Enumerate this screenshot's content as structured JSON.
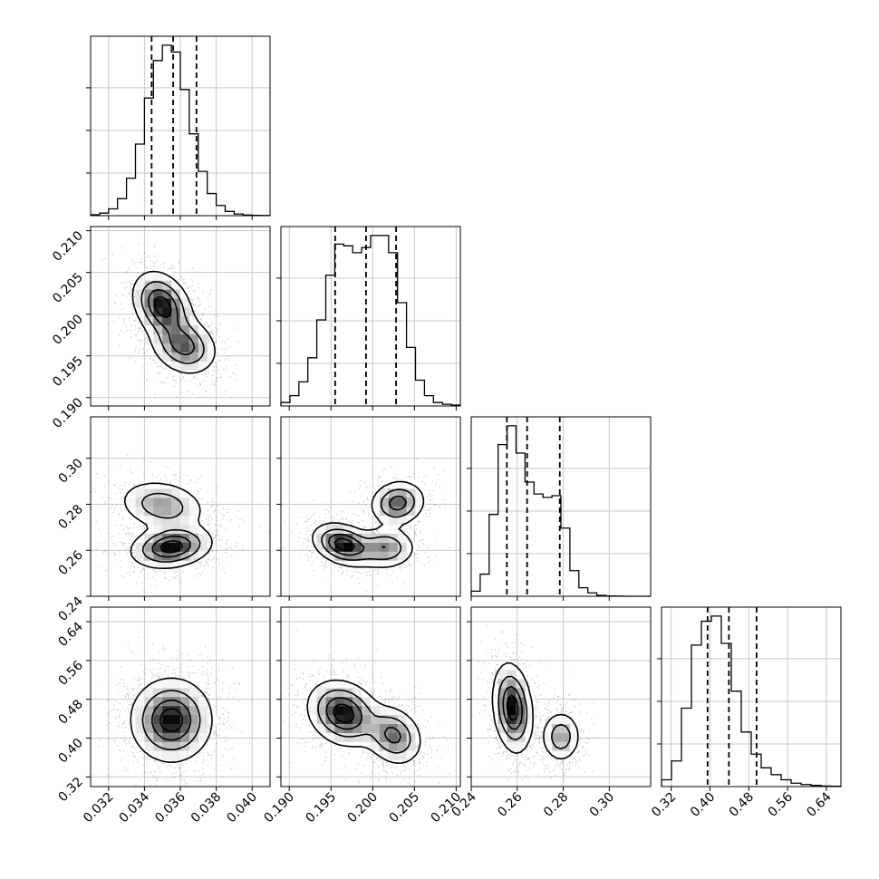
{
  "chart_data": {
    "type": "corner",
    "colors": {
      "line": "#000000",
      "grid": "#c8c8c8",
      "density": "#000000",
      "background": "#ffffff"
    },
    "grid": true,
    "quantiles": [
      0.16,
      0.5,
      0.84
    ],
    "params": [
      {
        "range": [
          0.031,
          0.041
        ],
        "ticks": [
          "0.032",
          "0.034",
          "0.036",
          "0.038",
          "0.040"
        ],
        "quantile_lines": [
          0.0344,
          0.0356,
          0.0369
        ],
        "hist": [
          0.005,
          0.015,
          0.04,
          0.1,
          0.22,
          0.42,
          0.69,
          0.91,
          1.0,
          0.96,
          0.74,
          0.48,
          0.26,
          0.13,
          0.06,
          0.025,
          0.01,
          0.004,
          0.002,
          0.001
        ]
      },
      {
        "range": [
          0.189,
          0.2105
        ],
        "ticks": [
          "0.190",
          "0.195",
          "0.200",
          "0.205",
          "0.210"
        ],
        "quantile_lines": [
          0.1955,
          0.1992,
          0.2028
        ],
        "hist": [
          0.02,
          0.06,
          0.14,
          0.28,
          0.5,
          0.76,
          0.94,
          0.93,
          0.89,
          0.92,
          0.99,
          0.99,
          0.89,
          0.6,
          0.34,
          0.15,
          0.06,
          0.02,
          0.01,
          0.005
        ]
      },
      {
        "range": [
          0.24,
          0.318
        ],
        "ticks": [
          "0.24",
          "0.26",
          "0.28",
          "0.30"
        ],
        "quantile_lines": [
          0.2555,
          0.2643,
          0.2785
        ],
        "hist": [
          0.03,
          0.13,
          0.48,
          0.89,
          1.0,
          0.84,
          0.67,
          0.6,
          0.58,
          0.59,
          0.4,
          0.15,
          0.05,
          0.02,
          0.005,
          0.002,
          0.001,
          0.0,
          0.0,
          0.0
        ]
      },
      {
        "range": [
          0.3,
          0.67
        ],
        "ticks": [
          "0.32",
          "0.40",
          "0.48",
          "0.56",
          "0.64"
        ],
        "quantile_lines": [
          0.395,
          0.439,
          0.496
        ],
        "hist": [
          0.04,
          0.15,
          0.46,
          0.83,
          0.97,
          1.0,
          0.84,
          0.56,
          0.32,
          0.19,
          0.11,
          0.07,
          0.04,
          0.02,
          0.012,
          0.007,
          0.003,
          0.002
        ]
      }
    ],
    "pairs": [
      {
        "x": 0,
        "y": 1,
        "blobs": [
          {
            "mx": 0.035,
            "my": 0.201,
            "sx": 0.0008,
            "sy": 0.002,
            "r": -0.3,
            "w": 1.0
          },
          {
            "mx": 0.0362,
            "my": 0.1962,
            "sx": 0.0009,
            "sy": 0.0017,
            "r": -0.2,
            "w": 0.75
          }
        ]
      },
      {
        "x": 0,
        "y": 2,
        "blobs": [
          {
            "mx": 0.0355,
            "my": 0.2615,
            "sx": 0.0011,
            "sy": 0.0045,
            "r": 0.2,
            "w": 1.0
          },
          {
            "mx": 0.035,
            "my": 0.2795,
            "sx": 0.0012,
            "sy": 0.0055,
            "r": -0.2,
            "w": 0.55
          }
        ]
      },
      {
        "x": 1,
        "y": 2,
        "blobs": [
          {
            "mx": 0.1965,
            "my": 0.2625,
            "sx": 0.0018,
            "sy": 0.0045,
            "r": -0.3,
            "w": 1.0
          },
          {
            "mx": 0.2015,
            "my": 0.261,
            "sx": 0.0018,
            "sy": 0.0045,
            "r": 0.0,
            "w": 0.6
          },
          {
            "mx": 0.203,
            "my": 0.2805,
            "sx": 0.0016,
            "sy": 0.0048,
            "r": 0.1,
            "w": 0.75
          }
        ]
      },
      {
        "x": 0,
        "y": 3,
        "blobs": [
          {
            "mx": 0.0355,
            "my": 0.437,
            "sx": 0.0011,
            "sy": 0.042,
            "r": 0.0,
            "w": 1.0
          }
        ]
      },
      {
        "x": 1,
        "y": 3,
        "blobs": [
          {
            "mx": 0.1965,
            "my": 0.451,
            "sx": 0.0021,
            "sy": 0.033,
            "r": -0.2,
            "w": 1.0
          },
          {
            "mx": 0.2025,
            "my": 0.405,
            "sx": 0.0017,
            "sy": 0.03,
            "r": -0.2,
            "w": 0.7
          }
        ]
      },
      {
        "x": 2,
        "y": 3,
        "blobs": [
          {
            "mx": 0.258,
            "my": 0.462,
            "sx": 0.0042,
            "sy": 0.045,
            "r": -0.2,
            "w": 1.0
          },
          {
            "mx": 0.279,
            "my": 0.403,
            "sx": 0.0042,
            "sy": 0.026,
            "r": 0.0,
            "w": 0.55
          }
        ]
      }
    ]
  }
}
